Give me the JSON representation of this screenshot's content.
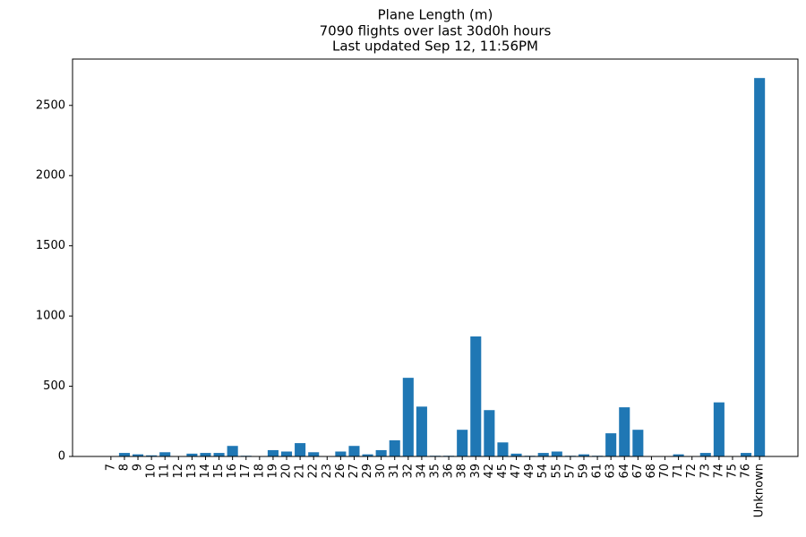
{
  "chart_data": {
    "type": "bar",
    "title": [
      "Plane Length (m)",
      "7090 flights over last 30d0h hours",
      "Last updated Sep 12, 11:56PM"
    ],
    "categories": [
      "7",
      "8",
      "9",
      "10",
      "11",
      "12",
      "13",
      "14",
      "15",
      "16",
      "17",
      "18",
      "19",
      "20",
      "21",
      "22",
      "23",
      "26",
      "27",
      "29",
      "30",
      "31",
      "32",
      "34",
      "35",
      "36",
      "38",
      "39",
      "42",
      "45",
      "47",
      "49",
      "54",
      "55",
      "57",
      "59",
      "61",
      "63",
      "64",
      "67",
      "68",
      "70",
      "71",
      "72",
      "73",
      "74",
      "75",
      "76",
      "Unknown"
    ],
    "values": [
      0,
      25,
      15,
      8,
      30,
      0,
      20,
      25,
      25,
      75,
      5,
      0,
      45,
      35,
      95,
      30,
      0,
      35,
      75,
      15,
      45,
      115,
      560,
      355,
      5,
      5,
      190,
      855,
      330,
      100,
      20,
      5,
      25,
      35,
      5,
      15,
      5,
      165,
      350,
      190,
      0,
      0,
      15,
      0,
      25,
      385,
      0,
      25,
      2695
    ],
    "color": "#1f77b4",
    "ylim": [
      0,
      2830
    ],
    "yticks": [
      0,
      500,
      1000,
      1500,
      2000,
      2500
    ],
    "grid": false
  }
}
